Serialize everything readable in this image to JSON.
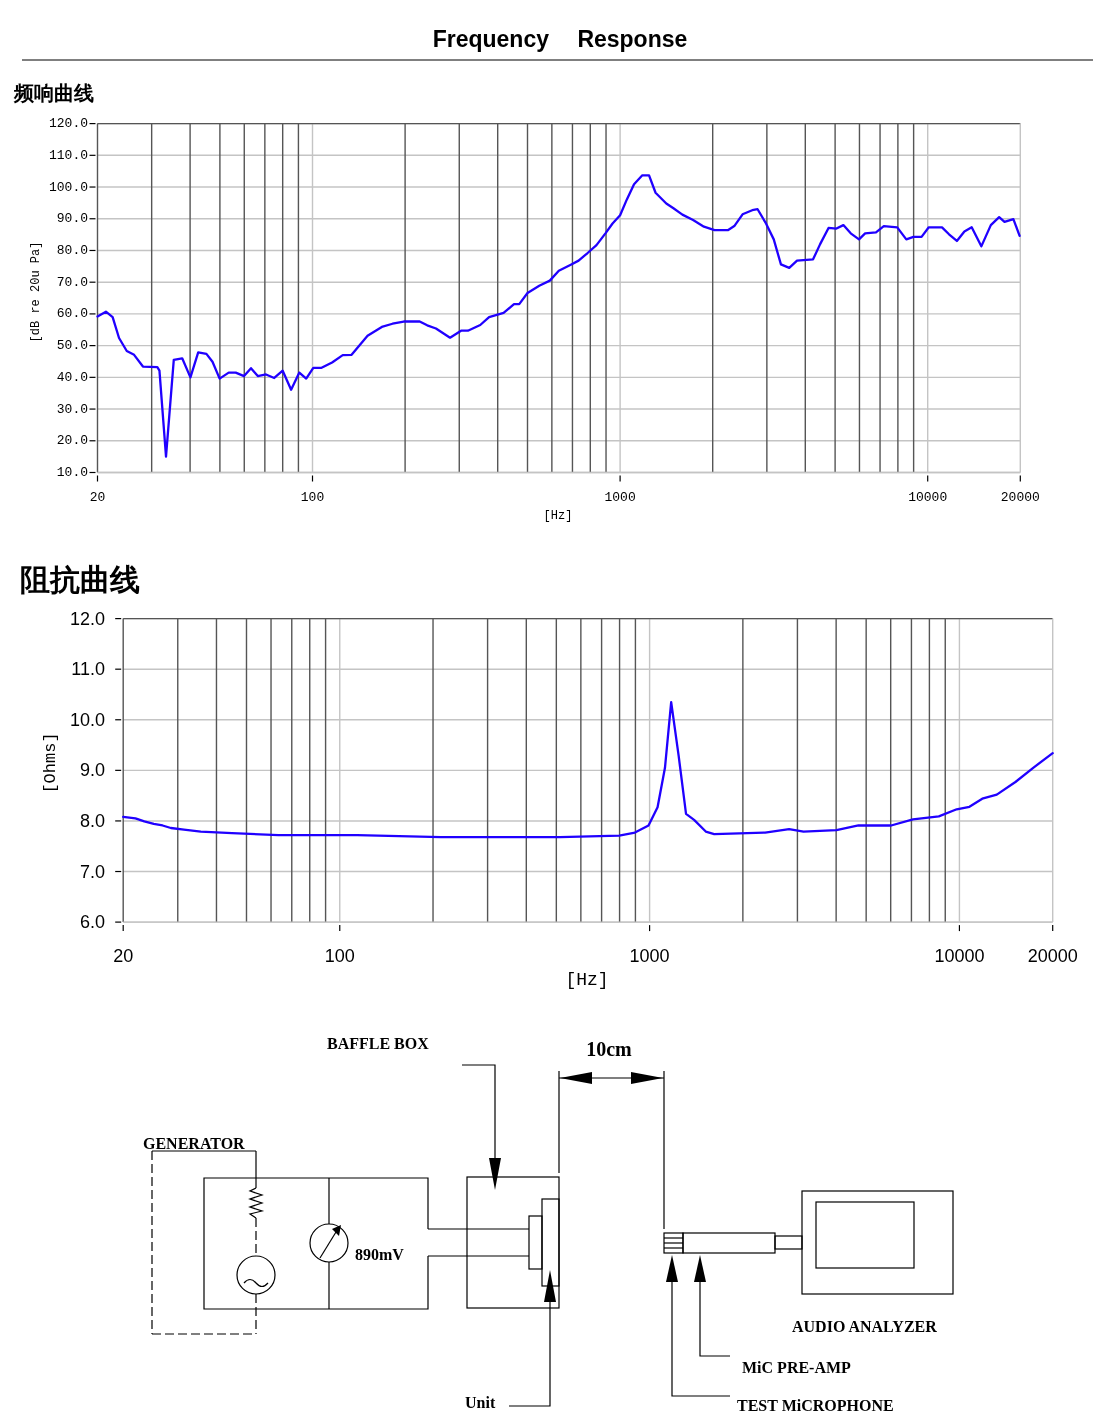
{
  "chart_data": [
    {
      "type": "line",
      "title": "Frequency Response",
      "subtitle": "频响曲线",
      "xlabel": "[Hz]",
      "ylabel": "[dB re 20u Pa]",
      "log": "x",
      "xlim": [
        20,
        20000
      ],
      "xticks": [
        20,
        100,
        1000,
        10000,
        20000
      ],
      "ylim": [
        10,
        120
      ],
      "yticks": [
        {
          "value": 10,
          "label": "10.0"
        },
        {
          "value": 20,
          "label": "20.0"
        },
        {
          "value": 30,
          "label": "30.0"
        },
        {
          "value": 40,
          "label": "40.0"
        },
        {
          "value": 50,
          "label": "50.0"
        },
        {
          "value": 60,
          "label": "60.0"
        },
        {
          "value": 70,
          "label": "70.0"
        },
        {
          "value": 80,
          "label": "80.0"
        },
        {
          "value": 90,
          "label": "90.0"
        },
        {
          "value": 100,
          "label": "100.0"
        },
        {
          "value": 110,
          "label": "110.0"
        },
        {
          "value": 120,
          "label": "120.0"
        }
      ],
      "grid": true,
      "series": [
        {
          "color": "#2000ff",
          "x": [
            20,
            21.3,
            22.4,
            23.5,
            24.9,
            26.3,
            28.1,
            31.3,
            31.8,
            33.4,
            35.4,
            37.7,
            40.1,
            42.5,
            45.2,
            47.3,
            49.9,
            53.4,
            56.3,
            59.9,
            63.1,
            66.4,
            70.6,
            75.1,
            80,
            85.2,
            90.6,
            95.4,
            100.6,
            107,
            115.8,
            125.4,
            134,
            151,
            168,
            182,
            198,
            223,
            236,
            252,
            280,
            304,
            320,
            351,
            375,
            418,
            452,
            470,
            500,
            546,
            591,
            632,
            694,
            733,
            784,
            838,
            896,
            945,
            1000,
            1052,
            1110,
            1181,
            1242,
            1304,
            1413,
            1491,
            1594,
            1727,
            1873,
            2028,
            2240,
            2351,
            2501,
            2689,
            2799,
            2970,
            3159,
            3333,
            3547,
            3760,
            4240,
            4470,
            4760,
            5050,
            5320,
            5620,
            5980,
            6260,
            6790,
            7200,
            7960,
            8520,
            8990,
            9550,
            10080,
            11130,
            11730,
            12440,
            13160,
            13900,
            14940,
            16040,
            17070,
            17770,
            18990,
            19900
          ],
          "values": [
            59.2,
            60.7,
            59.0,
            52.4,
            48.3,
            47.1,
            43.4,
            43.2,
            42.1,
            15.0,
            45.5,
            46.0,
            40.0,
            47.9,
            47.4,
            44.9,
            39.6,
            41.5,
            41.5,
            40.4,
            42.9,
            40.4,
            40.9,
            39.8,
            42.1,
            36.1,
            41.5,
            39.6,
            43.0,
            43.0,
            44.7,
            47.0,
            47.1,
            53.1,
            55.9,
            56.9,
            57.6,
            57.6,
            56.4,
            55.4,
            52.5,
            54.7,
            54.7,
            56.5,
            59.0,
            60.3,
            63.1,
            63.1,
            66.6,
            68.9,
            70.5,
            73.6,
            75.6,
            76.8,
            79.2,
            81.7,
            85.4,
            88.5,
            91.1,
            96.1,
            100.9,
            103.7,
            103.7,
            98.2,
            94.8,
            93.3,
            91.3,
            89.6,
            87.5,
            86.4,
            86.4,
            87.7,
            91.4,
            92.7,
            93.0,
            88.8,
            83.5,
            75.6,
            74.5,
            76.8,
            77.2,
            82.0,
            87.1,
            86.9,
            88.0,
            85.4,
            83.5,
            85.4,
            85.7,
            87.7,
            87.3,
            83.5,
            84.3,
            84.3,
            87.3,
            87.3,
            85.1,
            83.0,
            86.0,
            87.3,
            81.3,
            88.0,
            90.5,
            89.0,
            89.9,
            84.6
          ]
        }
      ]
    },
    {
      "type": "line",
      "title": "阻抗曲线",
      "xlabel": "[Hz]",
      "ylabel": "[Ohms]",
      "log": "x",
      "xlim": [
        20,
        20000
      ],
      "xticks": [
        20,
        100,
        1000,
        10000,
        20000
      ],
      "ylim": [
        6,
        12
      ],
      "yticks": [
        {
          "value": 6,
          "label": "6.0"
        },
        {
          "value": 7,
          "label": "7.0"
        },
        {
          "value": 8,
          "label": "8.0"
        },
        {
          "value": 9,
          "label": "9.0"
        },
        {
          "value": 10,
          "label": "10.0"
        },
        {
          "value": 11,
          "label": "11.0"
        },
        {
          "value": 12,
          "label": "12.0"
        }
      ],
      "grid": true,
      "series": [
        {
          "color": "#2000ff",
          "x": [
            20,
            21.9,
            23.4,
            25.1,
            26.8,
            28.5,
            31.4,
            35.6,
            44.9,
            63.4,
            113.8,
            212,
            514,
            798,
            897,
            992,
            1061,
            1121,
            1174,
            1242,
            1311,
            1392,
            1518,
            1616,
            2360,
            2820,
            3140,
            4010,
            4720,
            6020,
            7080,
            8580,
            9800,
            10770,
            11850,
            13200,
            15160,
            17300,
            20000
          ],
          "values": [
            8.08,
            8.05,
            7.99,
            7.94,
            7.91,
            7.86,
            7.83,
            7.79,
            7.76,
            7.72,
            7.72,
            7.68,
            7.68,
            7.71,
            7.77,
            7.91,
            8.27,
            9.05,
            10.35,
            9.27,
            8.14,
            8.02,
            7.79,
            7.74,
            7.77,
            7.84,
            7.79,
            7.82,
            7.91,
            7.91,
            8.03,
            8.09,
            8.23,
            8.28,
            8.44,
            8.52,
            8.77,
            9.05,
            9.34
          ]
        }
      ]
    },
    {
      "type": "other",
      "annotations": [
        "BAFFLE BOX",
        "10cm",
        "GENERATOR",
        "890mV",
        "AUDIO ANALYZER",
        "MiC PRE-AMP",
        "Unit",
        "TEST MiCROPHONE"
      ]
    }
  ]
}
